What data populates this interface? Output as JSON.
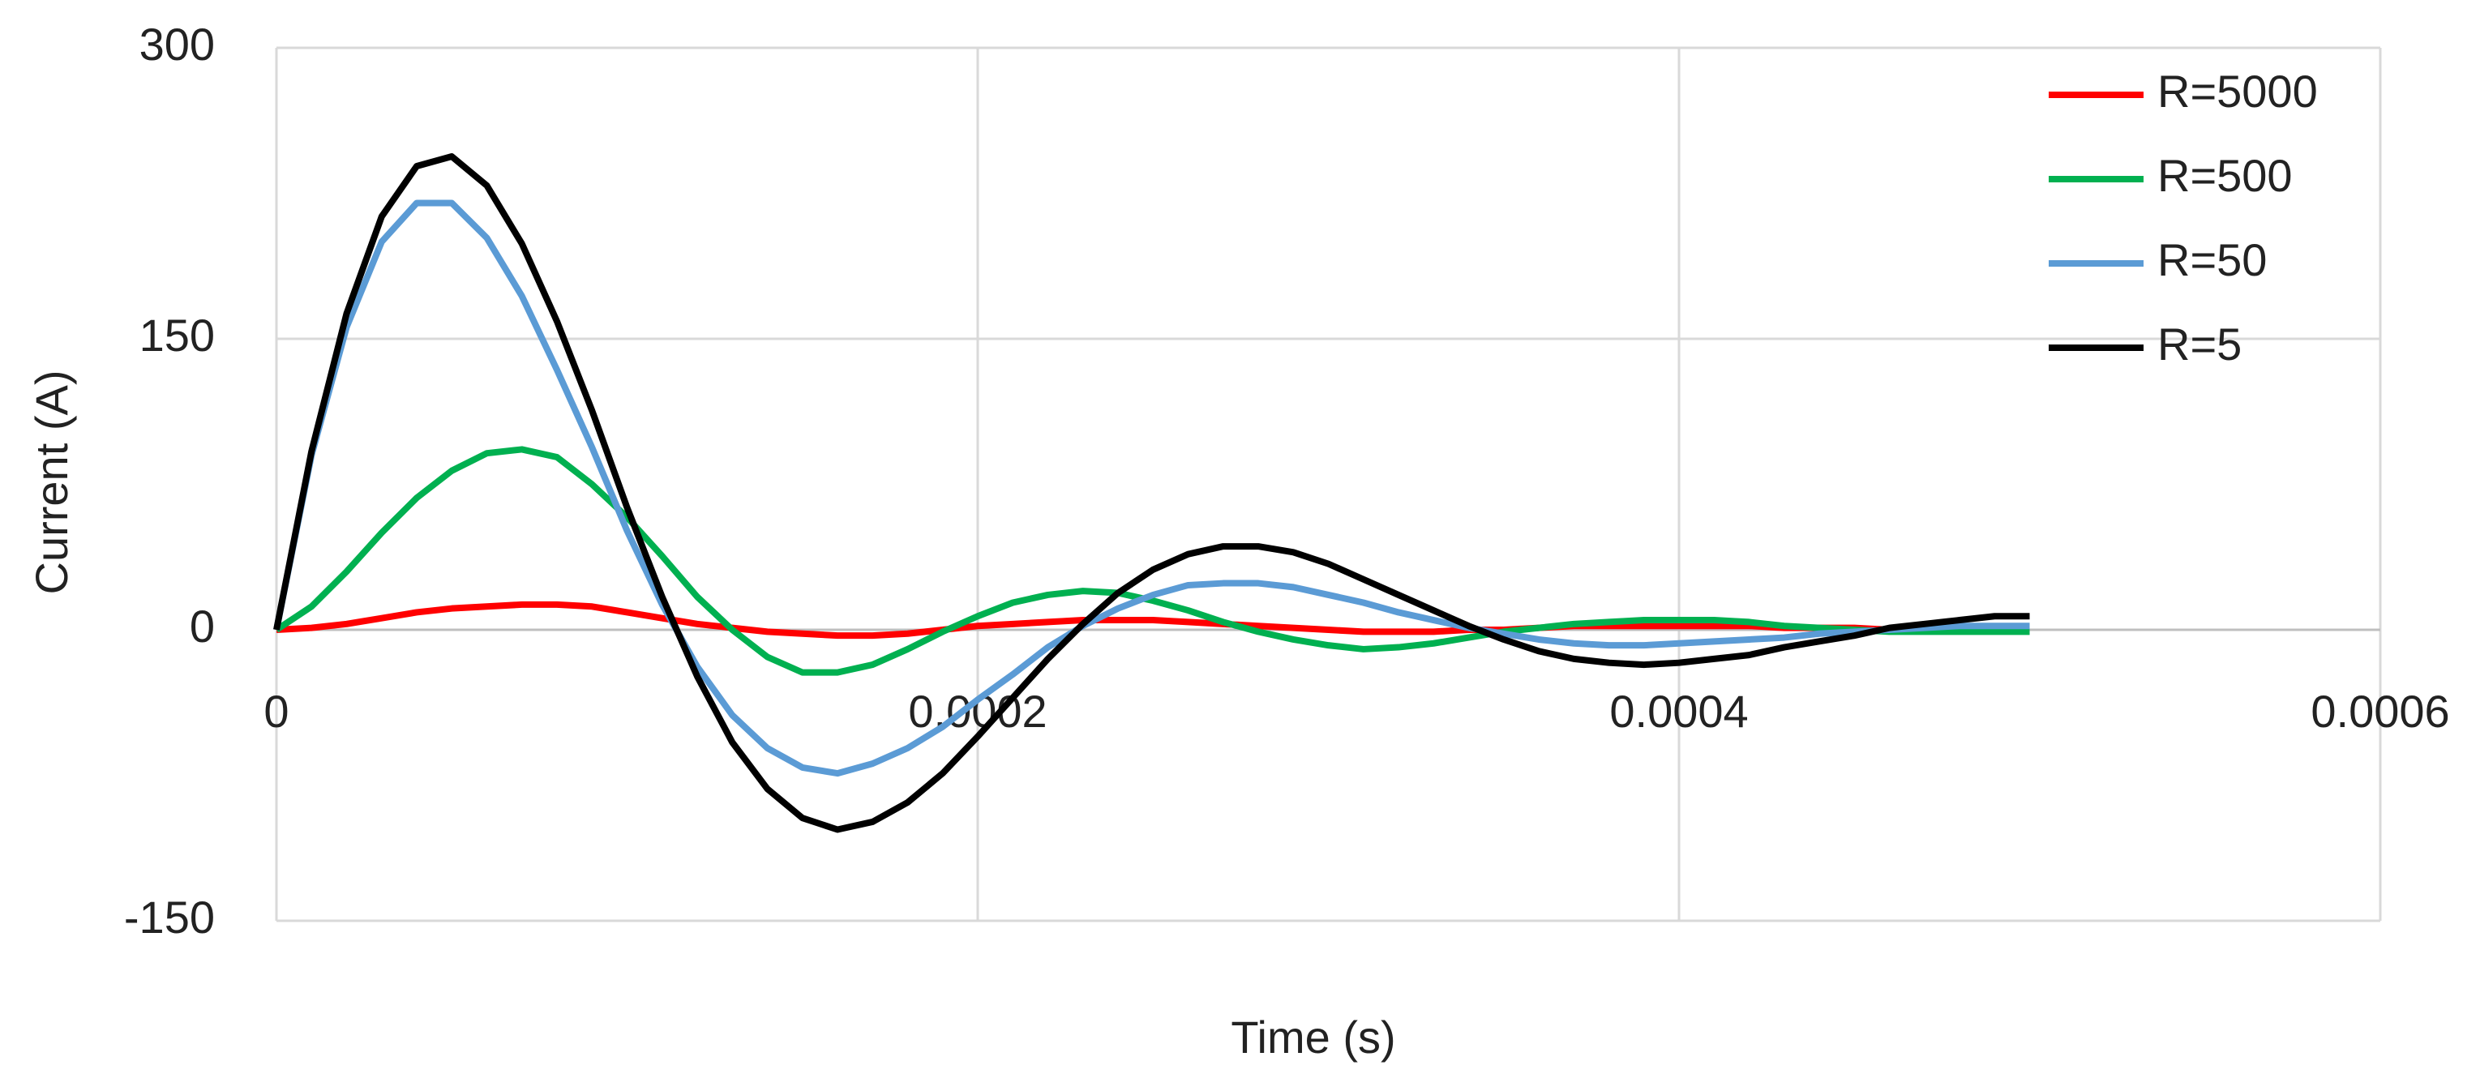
{
  "chart_data": {
    "type": "line",
    "x_label": "Time (s)",
    "y_label": "Current (A)",
    "x": [
      0,
      1e-05,
      2e-05,
      3e-05,
      4e-05,
      5e-05,
      6e-05,
      7e-05,
      8e-05,
      9e-05,
      0.0001,
      0.00011,
      0.00012,
      0.00013,
      0.00014,
      0.00015,
      0.00016,
      0.00017,
      0.00018,
      0.00019,
      0.0002,
      0.00021,
      0.00022,
      0.00023,
      0.00024,
      0.00025,
      0.00026,
      0.00027,
      0.00028,
      0.00029,
      0.0003,
      0.00031,
      0.00032,
      0.00033,
      0.00034,
      0.00035,
      0.00036,
      0.00037,
      0.00038,
      0.00039,
      0.0004,
      0.00041,
      0.00042,
      0.00043,
      0.00044,
      0.00045,
      0.00046,
      0.00047,
      0.00048,
      0.00049,
      0.0005
    ],
    "series": [
      {
        "name": "R=5000",
        "color": "#ff0000",
        "values": [
          0,
          1,
          3,
          6,
          9,
          11,
          12,
          13,
          13,
          12,
          9,
          6,
          3,
          1,
          -1,
          -2,
          -3,
          -3,
          -2,
          0,
          2,
          3,
          4,
          5,
          5,
          5,
          4,
          3,
          2,
          1,
          0,
          -1,
          -1,
          -1,
          0,
          0,
          1,
          2,
          2,
          2,
          2,
          2,
          2,
          1,
          1,
          1,
          0,
          0,
          0,
          0,
          0
        ]
      },
      {
        "name": "R=500",
        "color": "#00b050",
        "values": [
          0,
          12,
          30,
          50,
          68,
          82,
          91,
          93,
          89,
          75,
          58,
          38,
          17,
          0,
          -14,
          -22,
          -22,
          -18,
          -10,
          -1,
          7,
          14,
          18,
          20,
          19,
          15,
          10,
          4,
          -1,
          -5,
          -8,
          -10,
          -9,
          -7,
          -4,
          -1,
          1,
          3,
          4,
          5,
          5,
          5,
          4,
          2,
          1,
          0,
          -1,
          -1,
          -1,
          -1,
          -1
        ]
      },
      {
        "name": "R=50",
        "color": "#5b9bd5",
        "values": [
          0,
          90,
          156,
          200,
          220,
          220,
          202,
          172,
          134,
          94,
          51,
          13,
          -19,
          -44,
          -61,
          -71,
          -74,
          -69,
          -61,
          -50,
          -36,
          -23,
          -9,
          2,
          11,
          18,
          23,
          24,
          24,
          22,
          18,
          14,
          9,
          5,
          1,
          -2,
          -5,
          -7,
          -8,
          -8,
          -7,
          -6,
          -5,
          -4,
          -2,
          -1,
          0,
          1,
          2,
          2,
          2
        ]
      },
      {
        "name": "R=5",
        "color": "#000000",
        "values": [
          0,
          92,
          163,
          213,
          239,
          244,
          229,
          199,
          159,
          113,
          63,
          17,
          -24,
          -58,
          -82,
          -97,
          -103,
          -99,
          -89,
          -74,
          -55,
          -35,
          -15,
          3,
          19,
          31,
          39,
          43,
          43,
          40,
          34,
          26,
          18,
          10,
          2,
          -5,
          -11,
          -15,
          -17,
          -18,
          -17,
          -15,
          -13,
          -9,
          -6,
          -3,
          1,
          3,
          5,
          7,
          7
        ]
      }
    ],
    "xlim": [
      0,
      0.0006
    ],
    "xticks": [
      0,
      0.0002,
      0.0004,
      0.0006
    ],
    "ylim": [
      -150,
      300
    ],
    "yticks": [
      -150,
      0,
      150,
      300
    ],
    "grid": true,
    "legend": "top-right"
  }
}
